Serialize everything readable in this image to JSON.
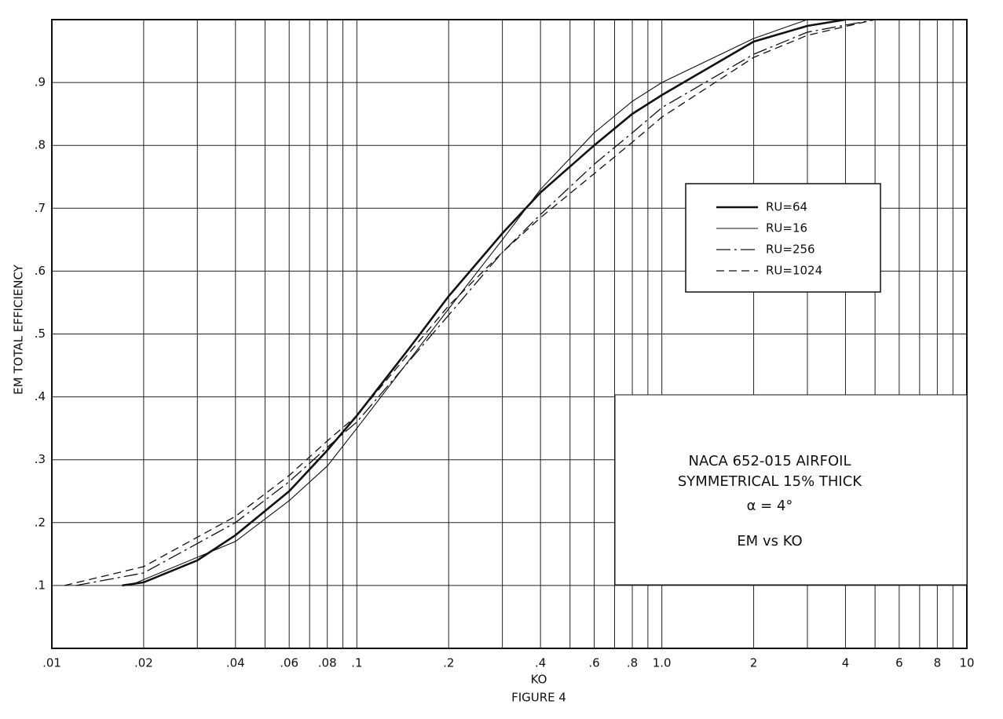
{
  "chart_data": {
    "type": "line",
    "title": "FIGURE 4",
    "x_label": "KO",
    "y_label": "EM   TOTAL EFFICIENCY",
    "x_log": true,
    "grid": true,
    "xlim": [
      0.01,
      10
    ],
    "ylim": [
      0,
      1.0
    ],
    "xticks": [
      {
        "value": 0.01,
        "label": ".01"
      },
      {
        "value": 0.02,
        "label": ".02"
      },
      {
        "value": 0.04,
        "label": ".04"
      },
      {
        "value": 0.06,
        "label": ".06"
      },
      {
        "value": 0.08,
        "label": ".08"
      },
      {
        "value": 0.1,
        "label": ".1"
      },
      {
        "value": 0.2,
        "label": ".2"
      },
      {
        "value": 0.4,
        "label": ".4"
      },
      {
        "value": 0.6,
        "label": ".6"
      },
      {
        "value": 0.8,
        "label": ".8"
      },
      {
        "value": 1.0,
        "label": "1.0"
      },
      2,
      4,
      6,
      8,
      10
    ],
    "x_minor_grid": [
      0.03,
      0.05,
      0.07,
      0.09,
      0.3,
      0.5,
      0.7,
      0.9,
      3,
      5,
      7,
      9
    ],
    "yticks": [
      {
        "value": 0.1,
        "label": ".1"
      },
      {
        "value": 0.2,
        "label": ".2"
      },
      {
        "value": 0.3,
        "label": ".3"
      },
      {
        "value": 0.4,
        "label": ".4"
      },
      {
        "value": 0.5,
        "label": ".5"
      },
      {
        "value": 0.6,
        "label": ".6"
      },
      {
        "value": 0.7,
        "label": ".7"
      },
      {
        "value": 0.8,
        "label": ".8"
      },
      {
        "value": 0.9,
        "label": ".9"
      }
    ],
    "series": [
      {
        "name": "RU=64",
        "color": "#111111",
        "linestyle": "thick",
        "x": [
          0.017,
          0.02,
          0.03,
          0.04,
          0.06,
          0.08,
          0.1,
          0.15,
          0.2,
          0.3,
          0.4,
          0.6,
          0.8,
          1.0,
          2,
          3,
          4
        ],
        "values": [
          0.1,
          0.105,
          0.14,
          0.18,
          0.25,
          0.315,
          0.37,
          0.48,
          0.56,
          0.66,
          0.725,
          0.8,
          0.85,
          0.88,
          0.965,
          0.99,
          1.0
        ]
      },
      {
        "name": "RU=16",
        "color": "#111111",
        "linestyle": "solid",
        "x": [
          0.018,
          0.04,
          0.06,
          0.08,
          0.1,
          0.2,
          0.3,
          0.4,
          0.6,
          0.8,
          1.0,
          2,
          3
        ],
        "values": [
          0.1,
          0.17,
          0.235,
          0.29,
          0.35,
          0.54,
          0.65,
          0.73,
          0.82,
          0.87,
          0.9,
          0.97,
          1.0
        ]
      },
      {
        "name": "RU=256",
        "color": "#111111",
        "linestyle": "dash-dot",
        "x": [
          0.012,
          0.02,
          0.04,
          0.06,
          0.08,
          0.1,
          0.2,
          0.3,
          0.4,
          0.6,
          0.8,
          1.0,
          2,
          3,
          5
        ],
        "values": [
          0.1,
          0.12,
          0.2,
          0.265,
          0.32,
          0.36,
          0.53,
          0.63,
          0.69,
          0.77,
          0.82,
          0.86,
          0.945,
          0.98,
          1.0
        ]
      },
      {
        "name": "RU=1024",
        "color": "#111111",
        "linestyle": "dashed",
        "x": [
          0.011,
          0.02,
          0.04,
          0.06,
          0.08,
          0.1,
          0.2,
          0.3,
          0.4,
          0.6,
          0.8,
          1.0,
          2,
          3,
          5
        ],
        "values": [
          0.1,
          0.13,
          0.21,
          0.275,
          0.33,
          0.37,
          0.545,
          0.63,
          0.685,
          0.755,
          0.805,
          0.845,
          0.94,
          0.975,
          1.0
        ]
      }
    ],
    "annotations": [
      "NACA 652-015 AIRFOIL",
      "SYMMETRICAL 15% THICK",
      "α = 4°",
      "EM vs KO"
    ]
  }
}
